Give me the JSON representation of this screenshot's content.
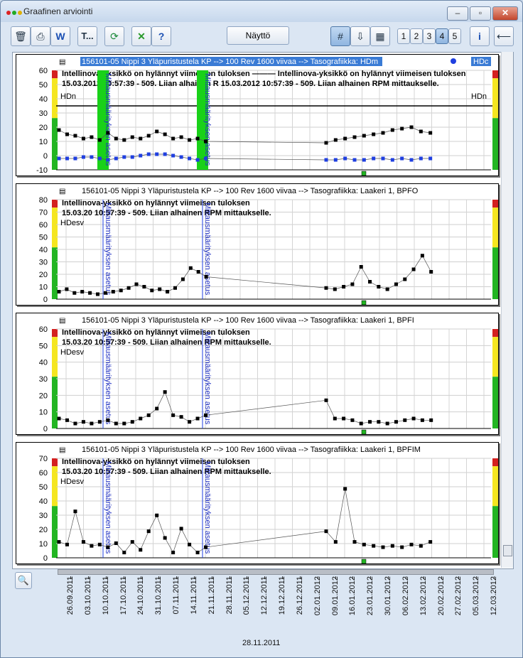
{
  "window": {
    "title": "Graafinen arviointi"
  },
  "toolbar": {
    "text_button": "T...",
    "show_button": "Näyttö",
    "panel_numbers": [
      "1",
      "2",
      "3",
      "4",
      "5"
    ],
    "active_panel": "4",
    "back_button": "⟵"
  },
  "panels": [
    {
      "header_left": "156101-05 Nippi 3 Yläpuristustela KP --> 100 Rev 1600 viivaa --> Tasografiikka: HDm",
      "header_right": "HDc",
      "yticks": [
        "60",
        "50",
        "40",
        "30",
        "20",
        "10",
        "0",
        "-10"
      ],
      "unit_label": "HDn",
      "unit_label_right": "HDn",
      "annotation_line1": "Intellinova-yksikkö on hylännyt viimeisen tuloksen ——— Intellinova-yksikkö on hylännyt viimeisen tuloksen",
      "annotation_line2": "15.03.2012 10:57:39 - 509. Liian alhainen R 15.03.2012 10:57:39 - 509. Liian alhainen RPM mittaukselle.",
      "vertical_note": "Mittausmäärityksen asetus",
      "series_colors": [
        "#000000",
        "#1f3fe0"
      ]
    },
    {
      "header_left": "156101-05 Nippi 3 Yläpuristustela KP --> 100 Rev 1600 viivaa --> Tasografiikka: Laakeri 1, BPFO",
      "yticks": [
        "80",
        "70",
        "60",
        "50",
        "40",
        "30",
        "20",
        "10",
        "0"
      ],
      "unit_label": "HDesv",
      "annotation_line1": "Intellinova-yksikkö on hylännyt viimeisen tuloksen",
      "annotation_line2": "15.03.20   10:57:39 - 509. Liian alhainen RPM mittaukselle.",
      "vertical_note": "Mittausmäärityksen asetus"
    },
    {
      "header_left": "156101-05 Nippi 3 Yläpuristustela KP --> 100 Rev 1600 viivaa --> Tasografiikka: Laakeri 1, BPFI",
      "yticks": [
        "60",
        "50",
        "40",
        "30",
        "20",
        "10",
        "0"
      ],
      "unit_label": "HDesv",
      "annotation_line1": "Intellinova-yksikkö on hylännyt viimeisen tuloksen",
      "annotation_line2": "15.03.20   10:57:39 - 509. Liian alhainen RPM mittaukselle.",
      "vertical_note": "Mittausmäärityksen asetus"
    },
    {
      "header_left": "156101-05 Nippi 3 Yläpuristustela KP --> 100 Rev 1600 viivaa --> Tasografiikka: Laakeri 1, BPFIM",
      "yticks": [
        "70",
        "60",
        "50",
        "40",
        "30",
        "20",
        "10",
        "0"
      ],
      "unit_label": "HDesv",
      "annotation_line1": "Intellinova-yksikkö on hylännyt viimeisen tuloksen",
      "annotation_line2": "15.03.20   10:57:39 - 509. Liian alhainen RPM mittaukselle.",
      "vertical_note": "Mittausmäärityksen asetus"
    }
  ],
  "date_axis": [
    "26.09.2011",
    "03.10.2011",
    "10.10.2011",
    "17.10.2011",
    "24.10.2011",
    "31.10.2011",
    "07.11.2011",
    "14.11.2011",
    "21.11.2011",
    "28.11.2011",
    "05.12.2011",
    "12.12.2011",
    "19.12.2011",
    "26.12.2011",
    "02.01.2012",
    "09.01.2012",
    "16.01.2012",
    "23.01.2012",
    "30.01.2012",
    "06.02.2012",
    "13.02.2012",
    "20.02.2012",
    "27.02.2012",
    "05.03.2012",
    "12.03.2012"
  ],
  "cursor_date": "28.11.2011",
  "chart_data": [
    {
      "type": "scatter",
      "title": "Tasografiikka: HDm",
      "ylim": [
        -10,
        60
      ],
      "series": [
        {
          "name": "HDm",
          "values": [
            18,
            15,
            14,
            12,
            13,
            11,
            16,
            12,
            11,
            13,
            12,
            14,
            17,
            15,
            12,
            13,
            11,
            12,
            10,
            9,
            11,
            12,
            13,
            14,
            15,
            16,
            18,
            19,
            20,
            17,
            16
          ]
        },
        {
          "name": "HDc",
          "values": [
            -2,
            -2,
            -2,
            -1,
            -1,
            -2,
            -3,
            -2,
            -1,
            -1,
            0,
            1,
            1,
            1,
            0,
            -1,
            -2,
            -3,
            -2,
            -3,
            -3,
            -2,
            -3,
            -3,
            -2,
            -2,
            -3,
            -2,
            -3,
            -2,
            -2
          ]
        }
      ]
    },
    {
      "type": "scatter",
      "title": "Tasografiikka: Laakeri 1, BPFO",
      "ylim": [
        0,
        80
      ],
      "series": [
        {
          "values": [
            6,
            8,
            5,
            6,
            5,
            4,
            5,
            6,
            7,
            9,
            12,
            10,
            7,
            8,
            6,
            9,
            16,
            25,
            22,
            18,
            9,
            8,
            10,
            12,
            26,
            14,
            10,
            8,
            12,
            16,
            24,
            35,
            22
          ]
        }
      ]
    },
    {
      "type": "scatter",
      "title": "Tasografiikka: Laakeri 1, BPFI",
      "ylim": [
        0,
        60
      ],
      "series": [
        {
          "values": [
            6,
            5,
            3,
            4,
            3,
            4,
            5,
            3,
            3,
            4,
            6,
            8,
            12,
            22,
            8,
            7,
            4,
            6,
            8,
            17,
            6,
            6,
            5,
            3,
            4,
            4,
            3,
            4,
            5,
            6,
            5,
            5
          ]
        }
      ]
    },
    {
      "type": "scatter",
      "title": "Tasografiikka: Laakeri 1, BPFIM",
      "ylim": [
        0,
        75
      ],
      "series": [
        {
          "values": [
            12,
            10,
            35,
            12,
            9,
            10,
            8,
            11,
            4,
            12,
            6,
            20,
            32,
            15,
            4,
            22,
            10,
            4,
            8,
            20,
            12,
            52,
            12,
            10,
            9,
            8,
            9,
            8,
            10,
            9,
            12
          ]
        }
      ]
    }
  ]
}
